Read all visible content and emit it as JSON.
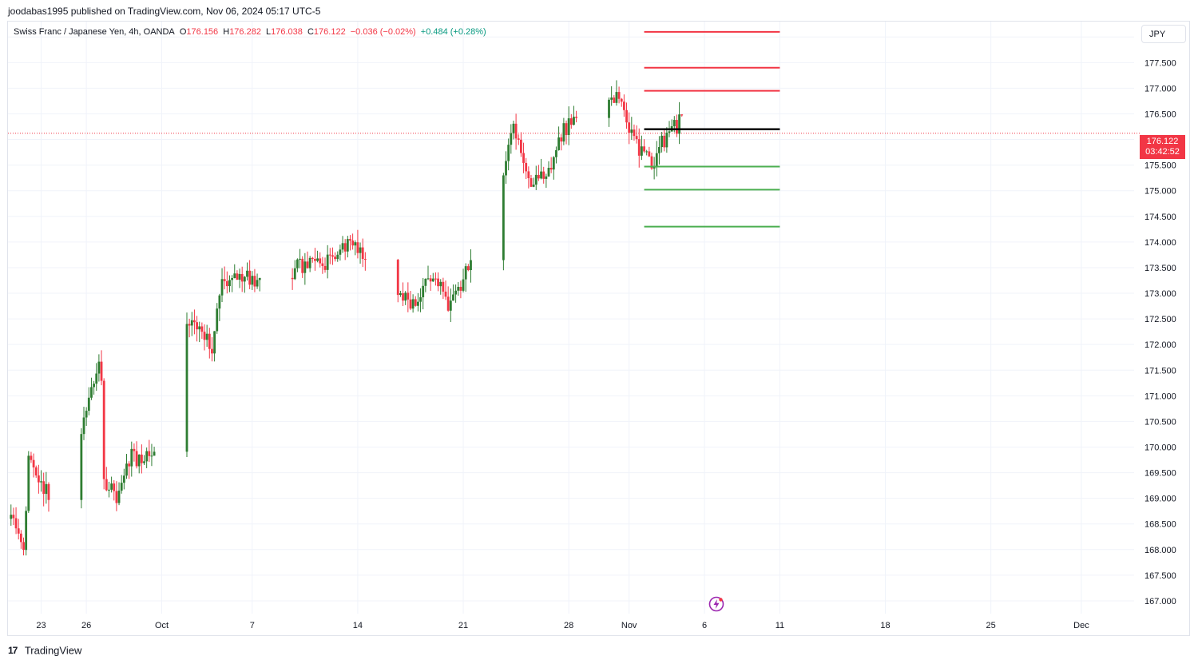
{
  "header": {
    "publisher_line": "joodabas1995 published on TradingView.com, Nov 06, 2024 05:17 UTC-5"
  },
  "legend": {
    "symbol": "Swiss Franc / Japanese Yen, 4h, OANDA",
    "open_label": "O",
    "open_value": "176.156",
    "high_label": "H",
    "high_value": "176.282",
    "low_label": "L",
    "low_value": "176.038",
    "close_label": "C",
    "close_value": "176.122",
    "change": "−0.036 (−0.02%)",
    "range_change": "+0.484 (+0.28%)"
  },
  "currency_button": "JPY",
  "price_tag": {
    "price": "176.122",
    "countdown": "03:42:52"
  },
  "footer": {
    "logo": "17",
    "brand": "TradingView"
  },
  "colors": {
    "up": "#2e7d32",
    "down": "#f23645",
    "resistance": "#f23645",
    "support": "#4caf50",
    "pivot": "#000000",
    "grid": "#f0f3fa"
  },
  "chart_data": {
    "type": "candlestick",
    "symbol": "CHFJPY",
    "timeframe": "4h",
    "currency": "JPY",
    "ylim": [
      166.75,
      178.3
    ],
    "y_ticks": [
      167.0,
      167.5,
      168.0,
      168.5,
      169.0,
      169.5,
      170.0,
      170.5,
      171.0,
      171.5,
      172.0,
      172.5,
      173.0,
      173.5,
      174.0,
      174.5,
      175.0,
      175.5,
      176.0,
      176.5,
      177.0,
      177.5,
      178.0
    ],
    "y_tick_labels": [
      "167.000",
      "167.500",
      "168.000",
      "168.500",
      "169.000",
      "169.500",
      "170.000",
      "170.500",
      "171.000",
      "171.500",
      "172.000",
      "172.500",
      "173.000",
      "173.500",
      "174.000",
      "174.500",
      "175.000",
      "175.500",
      "176.000",
      "176.500",
      "177.000",
      "177.500",
      "178.000"
    ],
    "x_ticks": [
      {
        "label": "23",
        "day": 2
      },
      {
        "label": "26",
        "day": 5
      },
      {
        "label": "Oct",
        "day": 10
      },
      {
        "label": "7",
        "day": 16
      },
      {
        "label": "14",
        "day": 23
      },
      {
        "label": "21",
        "day": 30
      },
      {
        "label": "28",
        "day": 37
      },
      {
        "label": "Nov",
        "day": 41
      },
      {
        "label": "6",
        "day": 46
      },
      {
        "label": "11",
        "day": 51
      },
      {
        "label": "18",
        "day": 58
      },
      {
        "label": "25",
        "day": 65
      },
      {
        "label": "Dec",
        "day": 71
      }
    ],
    "x_range_days": [
      -0.2,
      74.5
    ],
    "last_price": 176.122,
    "horizontal_levels": [
      {
        "price": 178.1,
        "role": "resistance",
        "start_day": 42.0,
        "end_day": 51.0
      },
      {
        "price": 177.4,
        "role": "resistance",
        "start_day": 42.0,
        "end_day": 51.0
      },
      {
        "price": 176.95,
        "role": "resistance",
        "start_day": 42.0,
        "end_day": 51.0
      },
      {
        "price": 176.2,
        "role": "pivot",
        "start_day": 42.0,
        "end_day": 51.0
      },
      {
        "price": 175.47,
        "role": "support",
        "start_day": 42.0,
        "end_day": 51.0
      },
      {
        "price": 175.02,
        "role": "support",
        "start_day": 42.0,
        "end_day": 51.0
      },
      {
        "price": 174.3,
        "role": "support",
        "start_day": 42.0,
        "end_day": 51.0
      }
    ],
    "anchors": [
      {
        "day": 0.0,
        "price": 168.6
      },
      {
        "day": 0.9,
        "price": 168.0
      },
      {
        "day": 1.1,
        "price": 169.8
      },
      {
        "day": 1.8,
        "price": 169.4
      },
      {
        "day": 2.5,
        "price": 169.1
      },
      {
        "day": 3.5,
        "price": 170.0
      },
      {
        "day": 4.5,
        "price": 170.2
      },
      {
        "day": 5.5,
        "price": 171.3
      },
      {
        "day": 5.95,
        "price": 172.0
      },
      {
        "day": 6.1,
        "price": 169.4
      },
      {
        "day": 7.0,
        "price": 169.0
      },
      {
        "day": 8.0,
        "price": 169.8
      },
      {
        "day": 9.0,
        "price": 169.8
      },
      {
        "day": 10.0,
        "price": 170.3
      },
      {
        "day": 11.0,
        "price": 172.3
      },
      {
        "day": 12.5,
        "price": 172.4
      },
      {
        "day": 13.3,
        "price": 171.9
      },
      {
        "day": 14.0,
        "price": 173.2
      },
      {
        "day": 16.0,
        "price": 173.3
      },
      {
        "day": 17.5,
        "price": 173.0
      },
      {
        "day": 19.0,
        "price": 173.5
      },
      {
        "day": 21.0,
        "price": 173.6
      },
      {
        "day": 22.5,
        "price": 174.0
      },
      {
        "day": 24.0,
        "price": 173.4
      },
      {
        "day": 25.5,
        "price": 173.0
      },
      {
        "day": 27.0,
        "price": 172.8
      },
      {
        "day": 27.8,
        "price": 173.4
      },
      {
        "day": 29.0,
        "price": 172.8
      },
      {
        "day": 30.2,
        "price": 173.4
      },
      {
        "day": 31.5,
        "price": 174.5
      },
      {
        "day": 32.5,
        "price": 175.0
      },
      {
        "day": 33.2,
        "price": 176.3
      },
      {
        "day": 34.5,
        "price": 175.2
      },
      {
        "day": 35.6,
        "price": 175.3
      },
      {
        "day": 36.2,
        "price": 176.0
      },
      {
        "day": 37.4,
        "price": 176.4
      },
      {
        "day": 38.2,
        "price": 177.0
      },
      {
        "day": 39.5,
        "price": 176.7
      },
      {
        "day": 40.5,
        "price": 176.9
      },
      {
        "day": 41.2,
        "price": 176.0
      },
      {
        "day": 42.0,
        "price": 175.7
      },
      {
        "day": 42.5,
        "price": 175.5
      },
      {
        "day": 43.5,
        "price": 176.1
      },
      {
        "day": 44.6,
        "price": 176.4
      },
      {
        "day": 45.3,
        "price": 175.8
      },
      {
        "day": 45.8,
        "price": 176.3
      },
      {
        "day": 46.4,
        "price": 176.12
      }
    ]
  }
}
